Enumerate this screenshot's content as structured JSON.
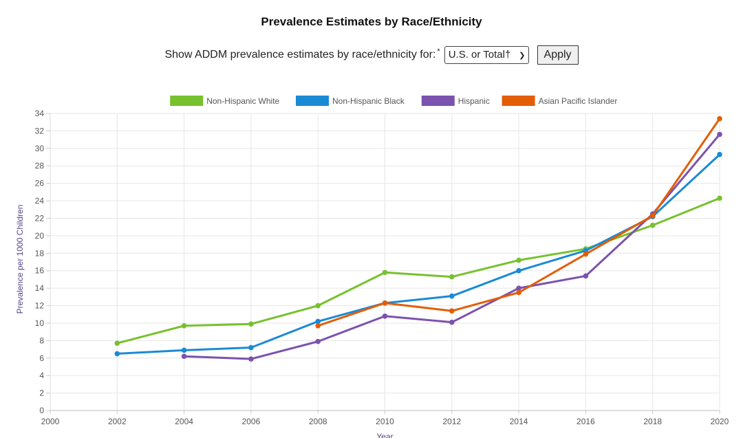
{
  "title": "Prevalence Estimates by Race/Ethnicity",
  "controls": {
    "label": "Show ADDM prevalence estimates by race/ethnicity for:",
    "asterisk": "*",
    "selected": "U.S. or Total†",
    "apply_label": "Apply"
  },
  "chart_data": {
    "type": "line",
    "xlabel": "Year",
    "ylabel": "Prevalence per 1000 Children",
    "xlim": [
      2000,
      2020
    ],
    "ylim": [
      0,
      34
    ],
    "x_ticks": [
      2000,
      2002,
      2004,
      2006,
      2008,
      2010,
      2012,
      2014,
      2016,
      2018,
      2020
    ],
    "y_ticks": [
      0,
      2,
      4,
      6,
      8,
      10,
      12,
      14,
      16,
      18,
      20,
      22,
      24,
      26,
      28,
      30,
      32,
      34
    ],
    "grid": true,
    "legend_position": "top-center",
    "series": [
      {
        "name": "Non-Hispanic White",
        "color": "#77c12e",
        "points": [
          [
            2002,
            7.7
          ],
          [
            2004,
            9.7
          ],
          [
            2006,
            9.9
          ],
          [
            2008,
            12.0
          ],
          [
            2010,
            15.8
          ],
          [
            2012,
            15.3
          ],
          [
            2014,
            17.2
          ],
          [
            2016,
            18.5
          ],
          [
            2018,
            21.2
          ],
          [
            2020,
            24.3
          ]
        ]
      },
      {
        "name": "Non-Hispanic Black",
        "color": "#1a8ad4",
        "points": [
          [
            2002,
            6.5
          ],
          [
            2004,
            6.9
          ],
          [
            2006,
            7.2
          ],
          [
            2008,
            10.2
          ],
          [
            2010,
            12.3
          ],
          [
            2012,
            13.1
          ],
          [
            2014,
            16.0
          ],
          [
            2016,
            18.3
          ],
          [
            2018,
            22.2
          ],
          [
            2020,
            29.3
          ]
        ]
      },
      {
        "name": "Hispanic",
        "color": "#7b52ae",
        "points": [
          [
            2004,
            6.2
          ],
          [
            2006,
            5.9
          ],
          [
            2008,
            7.9
          ],
          [
            2010,
            10.8
          ],
          [
            2012,
            10.1
          ],
          [
            2014,
            14.0
          ],
          [
            2016,
            15.4
          ],
          [
            2018,
            22.5
          ],
          [
            2020,
            31.6
          ]
        ]
      },
      {
        "name": "Asian Pacific Islander",
        "color": "#e35d04",
        "points": [
          [
            2008,
            9.7
          ],
          [
            2010,
            12.3
          ],
          [
            2012,
            11.4
          ],
          [
            2014,
            13.5
          ],
          [
            2016,
            17.9
          ],
          [
            2018,
            22.3
          ],
          [
            2020,
            33.4
          ]
        ]
      }
    ]
  }
}
